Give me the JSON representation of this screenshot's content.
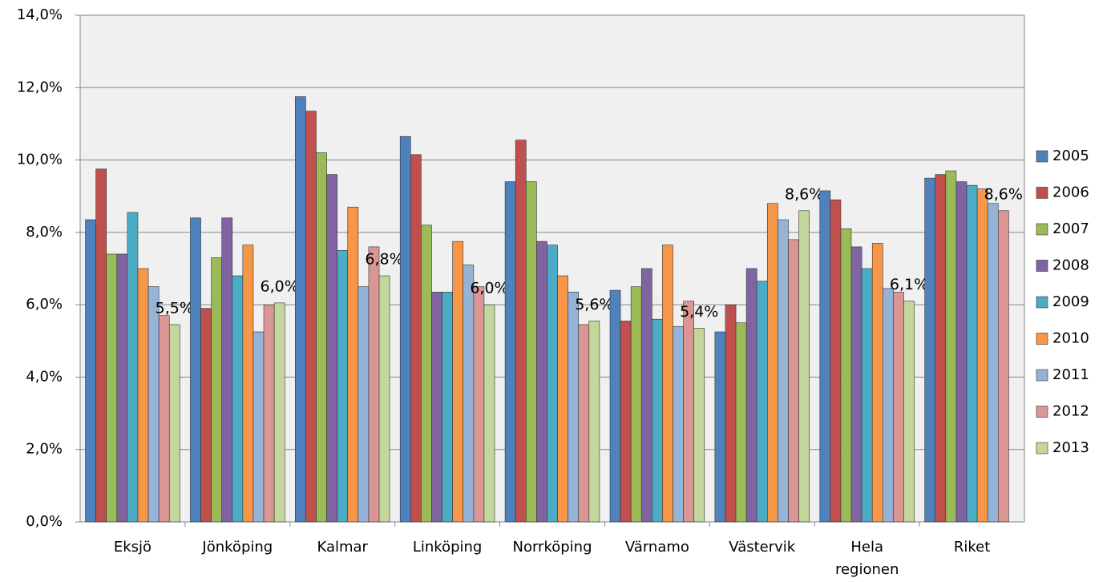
{
  "chart_data": {
    "type": "bar",
    "categories": [
      "Eksjö",
      "Jönköping",
      "Kalmar",
      "Linköping",
      "Norrköping",
      "Värnamo",
      "Västervik",
      "Hela regionen",
      "Riket"
    ],
    "series": [
      {
        "name": "2005",
        "color": "#4f81bd",
        "values": [
          8.35,
          8.4,
          11.75,
          10.65,
          9.4,
          6.4,
          5.25,
          9.15,
          9.5
        ]
      },
      {
        "name": "2006",
        "color": "#c0504d",
        "values": [
          9.75,
          5.9,
          11.35,
          10.15,
          10.55,
          5.55,
          6.0,
          8.9,
          9.6
        ]
      },
      {
        "name": "2007",
        "color": "#9bbb59",
        "values": [
          7.4,
          7.3,
          10.2,
          8.2,
          9.4,
          6.5,
          5.5,
          8.1,
          9.7
        ]
      },
      {
        "name": "2008",
        "color": "#8064a2",
        "values": [
          7.4,
          8.4,
          9.6,
          6.35,
          7.75,
          7.0,
          7.0,
          7.6,
          9.4
        ]
      },
      {
        "name": "2009",
        "color": "#4bacc6",
        "values": [
          8.55,
          6.8,
          7.5,
          6.35,
          7.65,
          5.6,
          6.65,
          7.0,
          9.3
        ]
      },
      {
        "name": "2010",
        "color": "#f79646",
        "values": [
          7.0,
          7.65,
          8.7,
          7.75,
          6.8,
          7.65,
          8.8,
          7.7,
          9.2
        ]
      },
      {
        "name": "2011",
        "color": "#95b3d7",
        "values": [
          6.5,
          5.25,
          6.5,
          7.1,
          6.35,
          5.4,
          8.35,
          6.45,
          8.8
        ]
      },
      {
        "name": "2012",
        "color": "#d99694",
        "values": [
          5.7,
          6.0,
          7.6,
          6.5,
          5.45,
          6.1,
          7.8,
          6.35,
          8.6
        ],
        "value_labels": [
          null,
          null,
          null,
          null,
          null,
          null,
          null,
          null,
          "8,6%"
        ]
      },
      {
        "name": "2013",
        "color": "#c3d69b",
        "values": [
          5.45,
          6.05,
          6.8,
          6.0,
          5.55,
          5.35,
          8.6,
          6.1,
          null
        ],
        "value_labels": [
          "5,5%",
          "6,0%",
          "6,8%",
          "6,0%",
          "5,6%",
          "5,4%",
          "8,6%",
          "6,1%",
          null
        ]
      }
    ],
    "ylim": [
      0,
      14
    ],
    "yticks": [
      {
        "value": 0,
        "label": "0,0%"
      },
      {
        "value": 2,
        "label": "2,0%"
      },
      {
        "value": 4,
        "label": "4,0%"
      },
      {
        "value": 6,
        "label": "6,0%"
      },
      {
        "value": 8,
        "label": "8,0%"
      },
      {
        "value": 10,
        "label": "10,0%"
      },
      {
        "value": 12,
        "label": "12,0%"
      },
      {
        "value": 14,
        "label": "14,0%"
      }
    ],
    "grid": true,
    "legend": "right"
  }
}
